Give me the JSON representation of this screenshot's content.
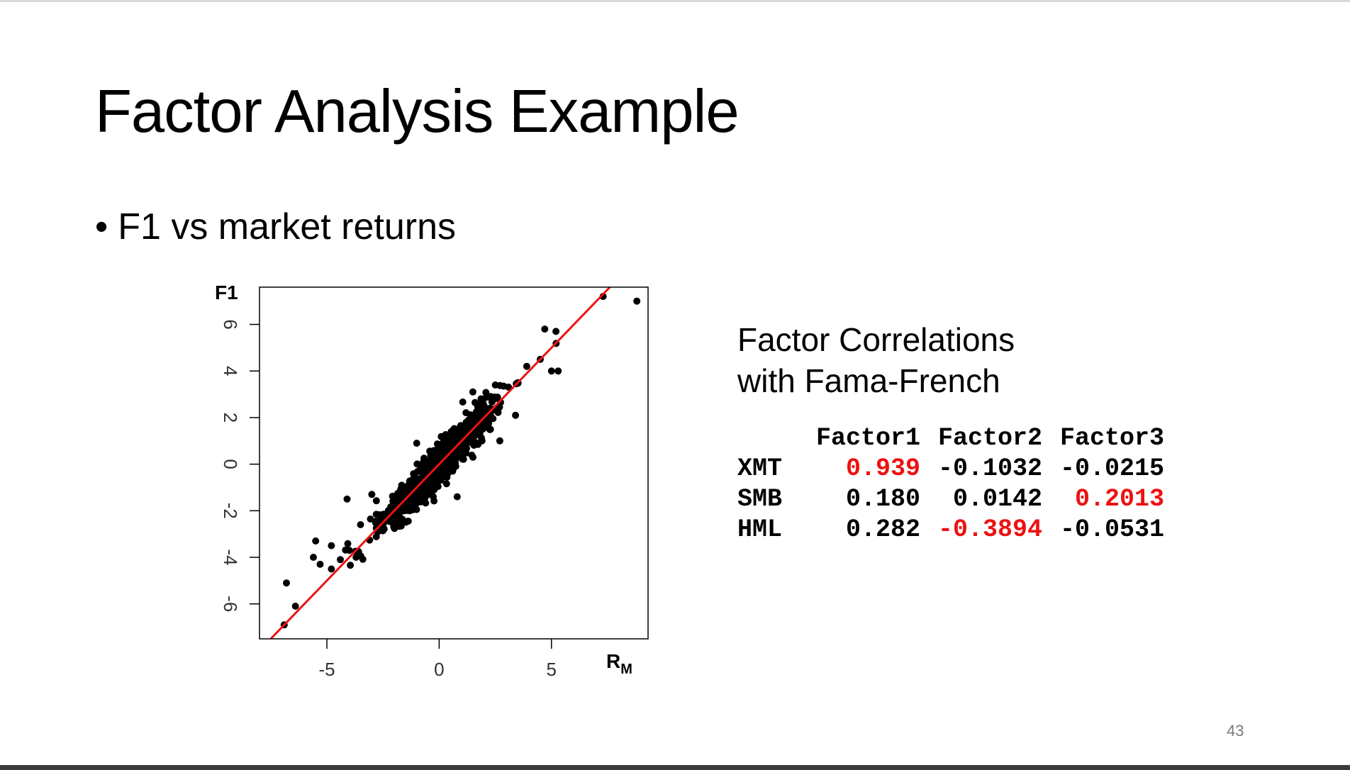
{
  "slide": {
    "title": "Factor Analysis Example",
    "bullet": "F1 vs market returns",
    "page_number": "43"
  },
  "chart_data": {
    "type": "scatter",
    "title": "",
    "ylabel": "F1",
    "xlabel": "R",
    "xlabel_subscript": "M",
    "xlim": [
      -8,
      9.3
    ],
    "ylim": [
      -7.5,
      7.6
    ],
    "xticks": [
      -5,
      0,
      5
    ],
    "yticks": [
      -6,
      -4,
      -2,
      0,
      2,
      4,
      6
    ],
    "xtick_labels": [
      "-5",
      "0",
      "5"
    ],
    "ytick_labels": [
      "-6",
      "-4",
      "-2",
      "0",
      "2",
      "4",
      "6"
    ],
    "point_color": "#000000",
    "grid": false,
    "fit_line": {
      "color": "#ee1111",
      "slope": 1.0,
      "intercept": 0.0
    },
    "outlier_points": [
      {
        "x": 8.8,
        "y": 7.0
      },
      {
        "x": 7.3,
        "y": 7.2
      },
      {
        "x": 4.7,
        "y": 5.8
      },
      {
        "x": 5.2,
        "y": 5.7
      },
      {
        "x": 5.0,
        "y": 4.0
      },
      {
        "x": 5.3,
        "y": 4.0
      },
      {
        "x": 4.5,
        "y": 4.5
      },
      {
        "x": 3.9,
        "y": 4.2
      },
      {
        "x": 3.5,
        "y": 3.5
      },
      {
        "x": 3.4,
        "y": 2.1
      },
      {
        "x": 2.7,
        "y": 1.0
      },
      {
        "x": -1.0,
        "y": 0.9
      },
      {
        "x": -4.1,
        "y": -1.5
      },
      {
        "x": -5.5,
        "y": -3.3
      },
      {
        "x": -4.8,
        "y": -3.5
      },
      {
        "x": -5.6,
        "y": -4.0
      },
      {
        "x": -5.3,
        "y": -4.3
      },
      {
        "x": -4.8,
        "y": -4.5
      },
      {
        "x": -4.4,
        "y": -4.1
      },
      {
        "x": -3.7,
        "y": -4.0
      },
      {
        "x": -4.0,
        "y": -3.7
      },
      {
        "x": -6.8,
        "y": -5.1
      },
      {
        "x": -6.4,
        "y": -6.1
      },
      {
        "x": -6.9,
        "y": -6.9
      },
      {
        "x": -3.5,
        "y": -2.6
      },
      {
        "x": -3.0,
        "y": -1.3
      },
      {
        "x": 1.5,
        "y": 3.1
      },
      {
        "x": 2.5,
        "y": 3.4
      },
      {
        "x": 0.8,
        "y": -1.4
      },
      {
        "x": -2.0,
        "y": -2.6
      }
    ],
    "cloud": {
      "count": 900,
      "x_mean": 0.0,
      "x_sd": 1.25,
      "y_noise_sd": 0.42,
      "slope": 1.0,
      "seed": 43
    }
  },
  "correlations": {
    "heading_line1": "Factor Correlations",
    "heading_line2": "with Fama-French",
    "columns": [
      "Factor1",
      "Factor2",
      "Factor3"
    ],
    "rows": [
      {
        "label": "XMT",
        "values": [
          "0.939",
          "-0.1032",
          "-0.0215"
        ]
      },
      {
        "label": "SMB",
        "values": [
          "0.180",
          "0.0142",
          "0.2013"
        ]
      },
      {
        "label": "HML",
        "values": [
          "0.282",
          "-0.3894",
          "-0.0531"
        ]
      }
    ],
    "highlight_color": "#ee1111"
  }
}
